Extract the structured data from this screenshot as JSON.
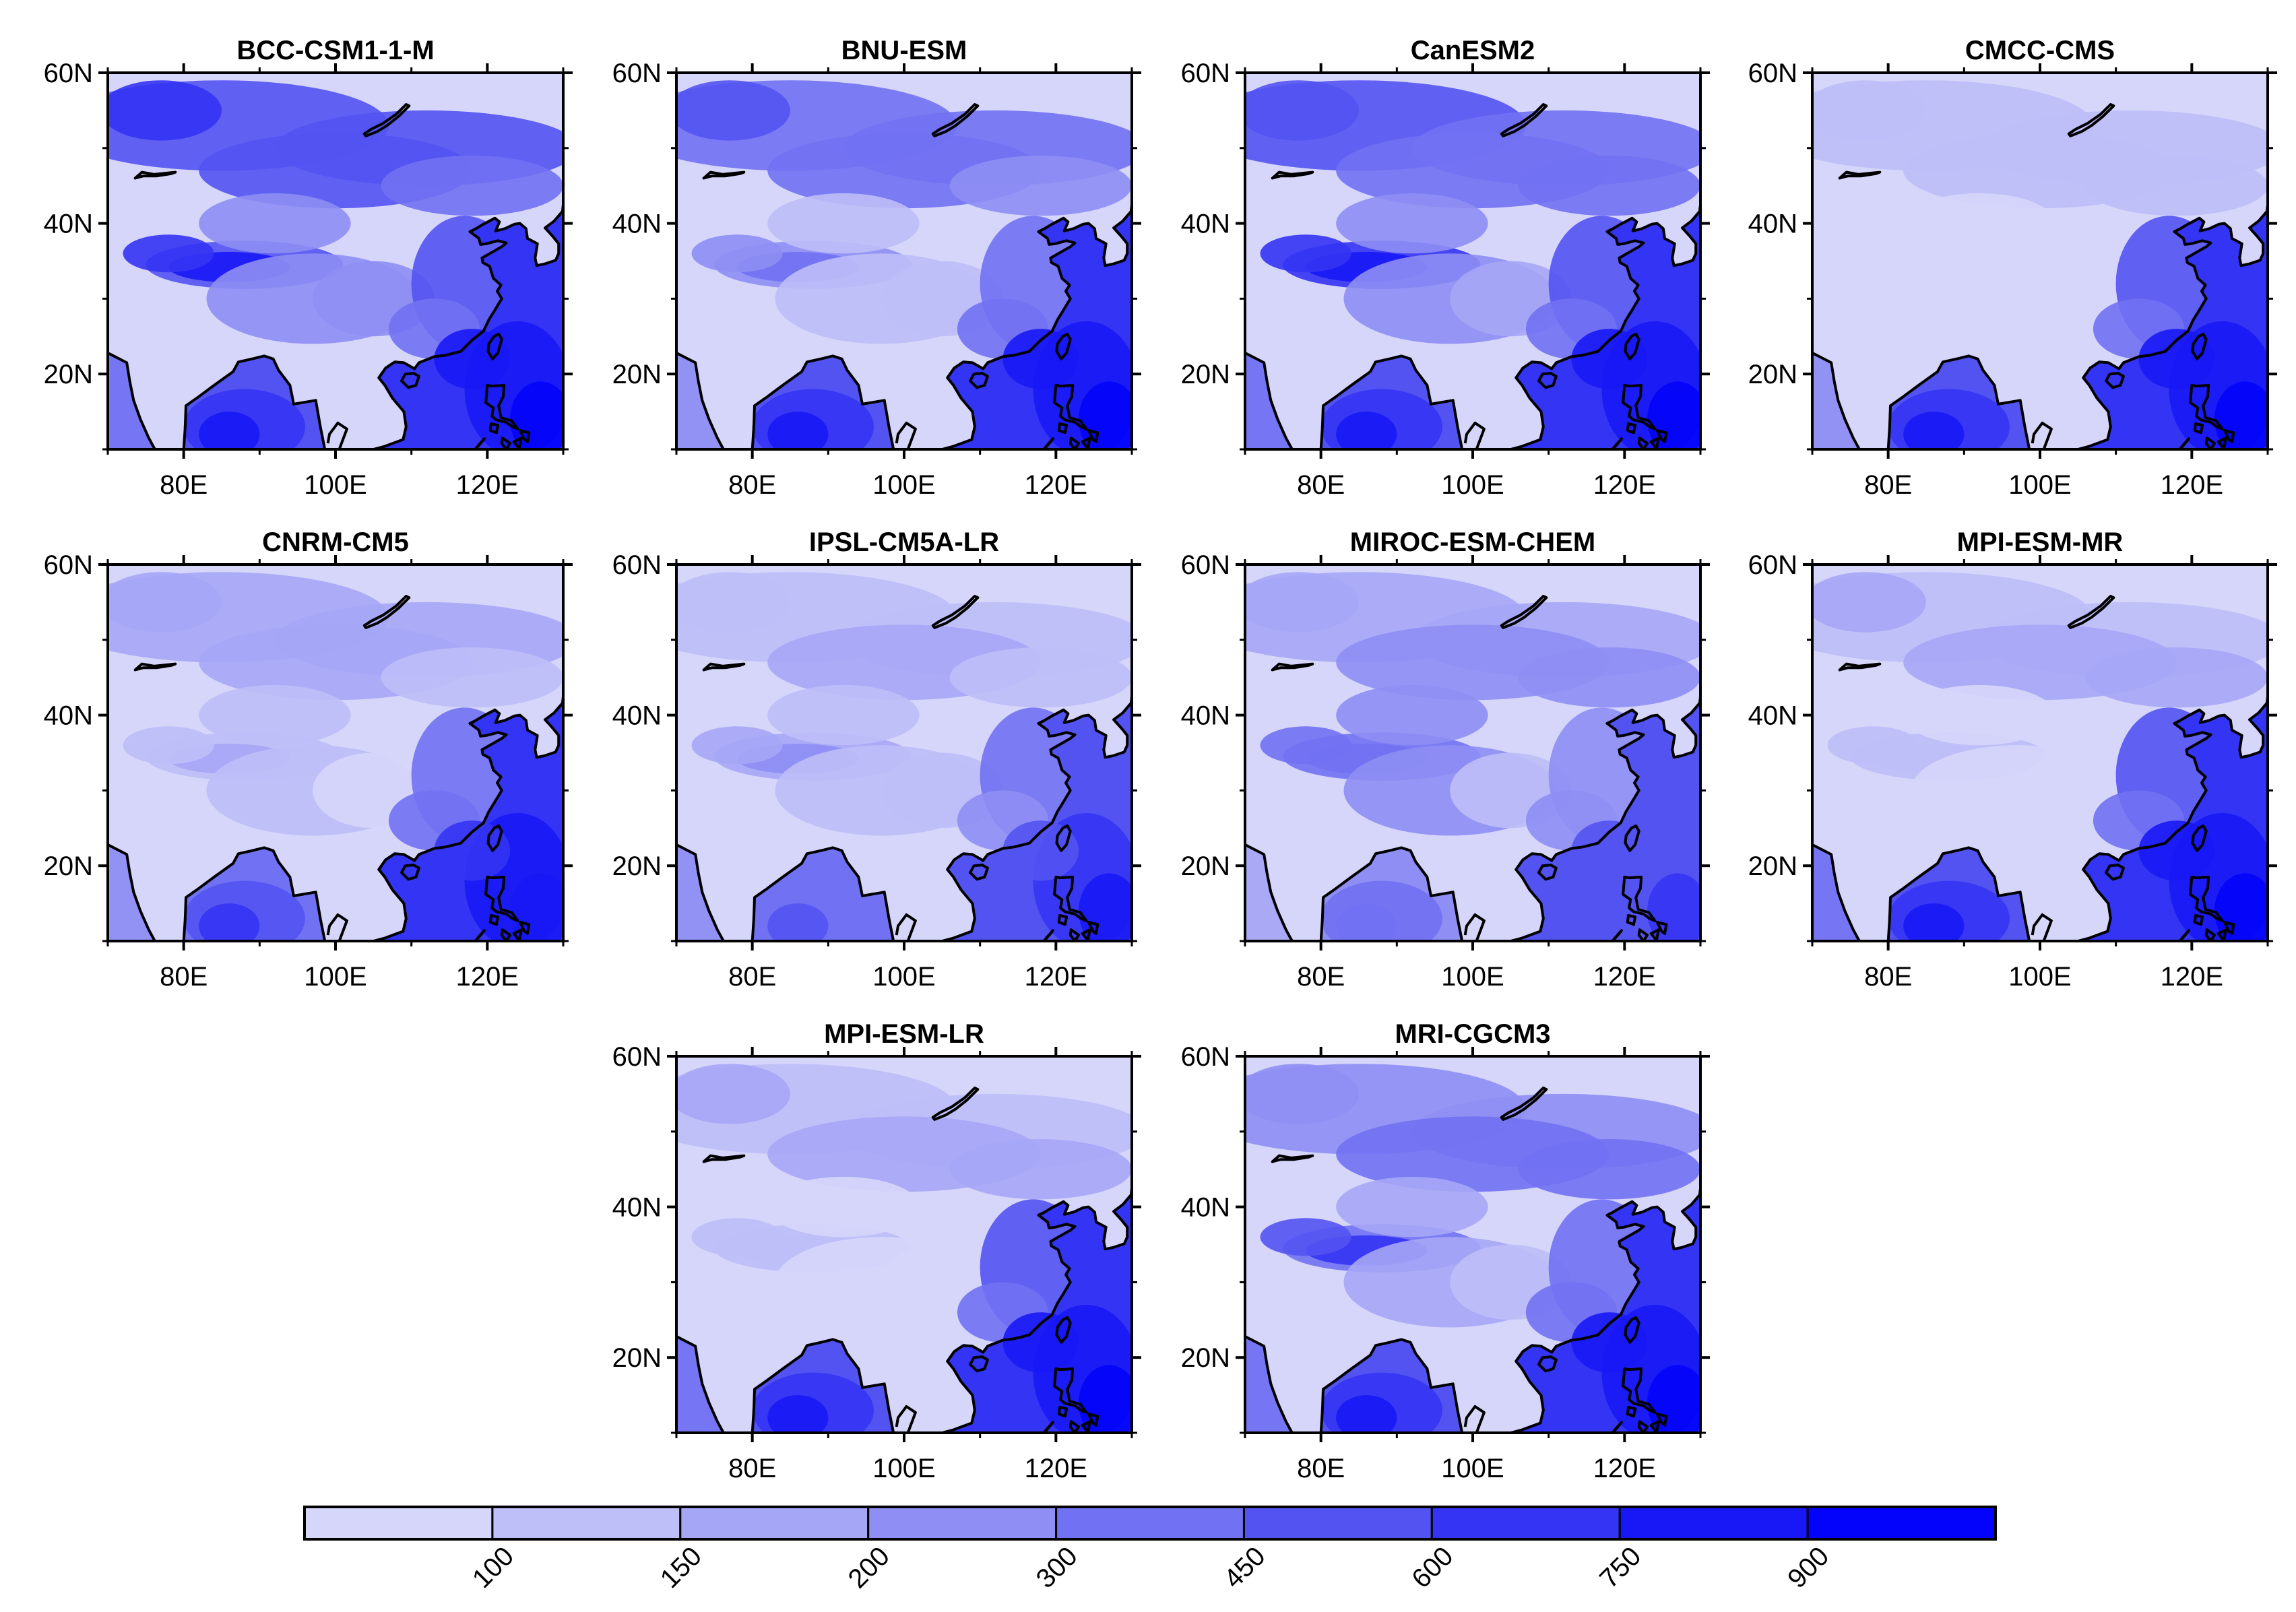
{
  "figure": {
    "panels": [
      {
        "id": "bcc",
        "title": "BCC-CSM1-1-M",
        "style": {
          "north": 0.68,
          "mongolia": 0.58,
          "tarim": 0.85,
          "plateau": 0.4,
          "china": 0.38,
          "india": 0.8,
          "ocean": 0.88,
          "east_china": 0.62
        }
      },
      {
        "id": "bnu",
        "title": "BNU-ESM",
        "style": {
          "north": 0.55,
          "mongolia": 0.45,
          "tarim": 0.45,
          "plateau": 0.18,
          "china": 0.12,
          "india": 0.72,
          "ocean": 0.88,
          "east_china": 0.55
        }
      },
      {
        "id": "can",
        "title": "CanESM2",
        "style": {
          "north": 0.62,
          "mongolia": 0.55,
          "tarim": 0.92,
          "plateau": 0.35,
          "china": 0.3,
          "india": 0.78,
          "ocean": 0.88,
          "east_china": 0.58
        }
      },
      {
        "id": "cmcc",
        "title": "CMCC-CMS",
        "style": {
          "north": 0.1,
          "mongolia": 0.18,
          "tarim": 0.05,
          "plateau": 0.05,
          "china": 0.05,
          "india": 0.72,
          "ocean": 0.86,
          "east_china": 0.62
        }
      },
      {
        "id": "cnrm",
        "title": "CNRM-CM5",
        "style": {
          "north": 0.22,
          "mongolia": 0.2,
          "tarim": 0.2,
          "plateau": 0.08,
          "china": 0.05,
          "india": 0.62,
          "ocean": 0.82,
          "east_china": 0.55
        }
      },
      {
        "id": "ipsl",
        "title": "IPSL-CM5A-LR",
        "style": {
          "north": 0.15,
          "mongolia": 0.2,
          "tarim": 0.35,
          "plateau": 0.1,
          "china": 0.08,
          "india": 0.55,
          "ocean": 0.72,
          "east_china": 0.48
        }
      },
      {
        "id": "miroc",
        "title": "MIROC-ESM-CHEM",
        "style": {
          "north": 0.25,
          "mongolia": 0.38,
          "tarim": 0.55,
          "plateau": 0.35,
          "china": 0.08,
          "india": 0.45,
          "ocean": 0.68,
          "east_china": 0.4
        }
      },
      {
        "id": "mpimr",
        "title": "MPI-ESM-MR",
        "style": {
          "north": 0.18,
          "mongolia": 0.22,
          "tarim": 0.1,
          "plateau": 0.05,
          "china": 0.05,
          "india": 0.75,
          "ocean": 0.86,
          "east_china": 0.62
        }
      },
      {
        "id": "mpilr",
        "title": "MPI-ESM-LR",
        "style": {
          "north": 0.18,
          "mongolia": 0.22,
          "tarim": 0.1,
          "plateau": 0.05,
          "china": 0.05,
          "india": 0.75,
          "ocean": 0.86,
          "east_china": 0.62
        }
      },
      {
        "id": "mri",
        "title": "MRI-CGCM3",
        "style": {
          "north": 0.4,
          "mongolia": 0.55,
          "tarim": 0.7,
          "plateau": 0.3,
          "china": 0.1,
          "india": 0.8,
          "ocean": 0.86,
          "east_china": 0.55
        }
      }
    ],
    "lat_ticks": [
      "20N",
      "40N",
      "60N"
    ],
    "lon_ticks": [
      "80E",
      "100E",
      "120E"
    ],
    "colorbar": {
      "levels": [
        "100",
        "150",
        "200",
        "300",
        "450",
        "600",
        "750",
        "900"
      ],
      "colors": [
        "#d6d6fb",
        "#bebef8",
        "#a6a6f6",
        "#8e8ef4",
        "#7171f3",
        "#5353f2",
        "#3434f4",
        "#1818f6",
        "#0303fb"
      ]
    },
    "coastline_color": "#000000",
    "frame_color": "#000000"
  }
}
